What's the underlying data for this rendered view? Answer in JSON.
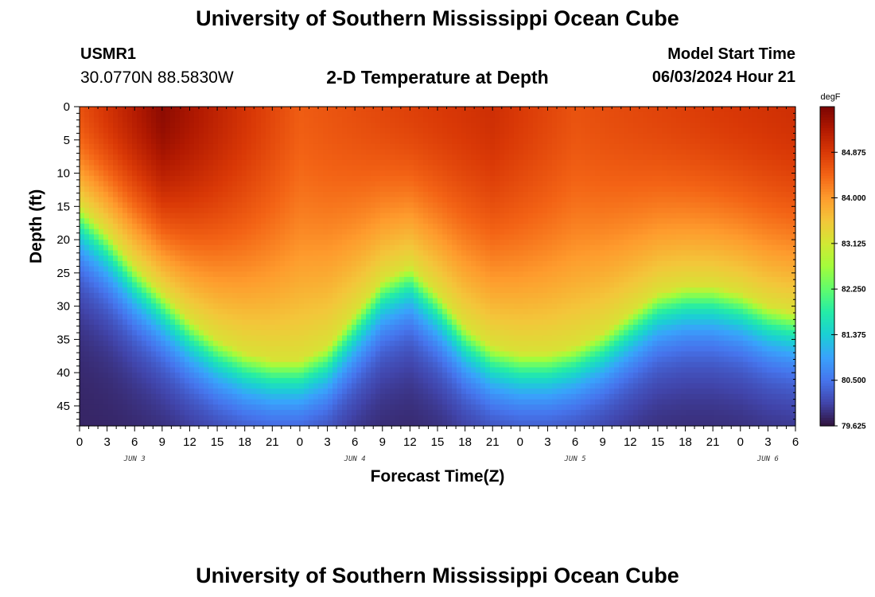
{
  "header": {
    "title": "University of Southern Mississippi Ocean Cube",
    "station_id": "USMR1",
    "coordinates": "30.0770N  88.5830W",
    "plot_title": "2-D Temperature at Depth",
    "model_label": "Model Start Time",
    "model_start": "06/03/2024 Hour 21"
  },
  "footer": {
    "title": "University of Southern Mississippi Ocean Cube"
  },
  "chart_data": {
    "type": "heatmap",
    "xlabel": "Forecast Time(Z)",
    "ylabel": "Depth (ft)",
    "x_tick_labels": [
      "0",
      "3",
      "6",
      "9",
      "12",
      "15",
      "18",
      "21",
      "0",
      "3",
      "6",
      "9",
      "12",
      "15",
      "18",
      "21",
      "0",
      "3",
      "6",
      "9",
      "12",
      "15",
      "18",
      "21",
      "0",
      "3",
      "6"
    ],
    "date_labels": [
      {
        "label": "JUN 3",
        "tick_index": 2
      },
      {
        "label": "JUN 4",
        "tick_index": 10
      },
      {
        "label": "JUN 5",
        "tick_index": 18
      },
      {
        "label": "JUN 6",
        "tick_index": 25
      }
    ],
    "y_ticks": [
      0,
      5,
      10,
      15,
      20,
      25,
      30,
      35,
      40,
      45
    ],
    "ylim": [
      0,
      48
    ],
    "y_inverted": true,
    "colorbar": {
      "unit": "degF",
      "range": [
        79.625,
        85.75
      ],
      "tick_labels": [
        "84.875",
        "84.000",
        "83.125",
        "82.250",
        "81.375",
        "80.500",
        "79.625"
      ],
      "colormap": [
        "#30123b",
        "#4145ab",
        "#4675ed",
        "#39a2fc",
        "#1bcfd4",
        "#24eca6",
        "#61fc6c",
        "#a4fc3b",
        "#d1e834",
        "#f3c63a",
        "#fe9b2d",
        "#f36315",
        "#d93806",
        "#b11901",
        "#7a0402"
      ]
    },
    "thermocline_depth_ft": {
      "forecast_hour": [
        0,
        3,
        6,
        9,
        12,
        15,
        18,
        21,
        24,
        27,
        30,
        33,
        36,
        39,
        42,
        45,
        48,
        51,
        54,
        57,
        60,
        63,
        66,
        69,
        72,
        75,
        78
      ],
      "depth": [
        15,
        19,
        24,
        28,
        32,
        35,
        37,
        38,
        38,
        36,
        31,
        26,
        24,
        28,
        33,
        36,
        37,
        37,
        36,
        34,
        31,
        28,
        27,
        27,
        28,
        30,
        31
      ]
    },
    "surface_temperature_degF": {
      "forecast_hour": [
        0,
        9,
        24,
        45,
        54,
        78
      ],
      "temperature": [
        84.6,
        85.6,
        84.5,
        85.0,
        84.6,
        85.0
      ]
    }
  }
}
